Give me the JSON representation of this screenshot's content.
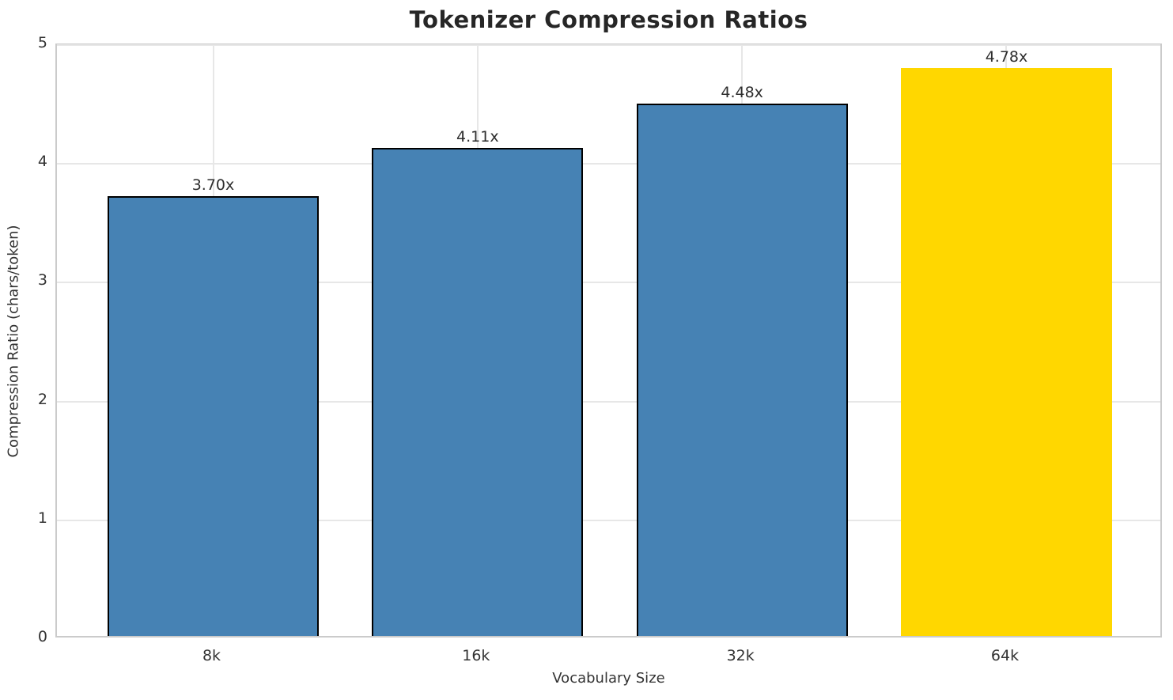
{
  "chart_data": {
    "type": "bar",
    "title": "Tokenizer Compression Ratios",
    "xlabel": "Vocabulary Size",
    "ylabel": "Compression Ratio (chars/token)",
    "categories": [
      "8k",
      "16k",
      "32k",
      "64k"
    ],
    "values": [
      3.7,
      4.11,
      4.48,
      4.78
    ],
    "bar_labels": [
      "3.70x",
      "4.11x",
      "4.48x",
      "4.78x"
    ],
    "ylim": [
      0,
      5
    ],
    "yticks": [
      0,
      1,
      2,
      3,
      4,
      5
    ],
    "grid": true,
    "legend": "none",
    "highlight_index": 3,
    "colors": {
      "bar": "#4682B4",
      "bar_edge": "#000000",
      "highlight_bar": "#FFD700",
      "grid": "#e7e7e7",
      "spine": "#cbcbcb",
      "tick_text": "#333333",
      "title_text": "#262626"
    }
  }
}
